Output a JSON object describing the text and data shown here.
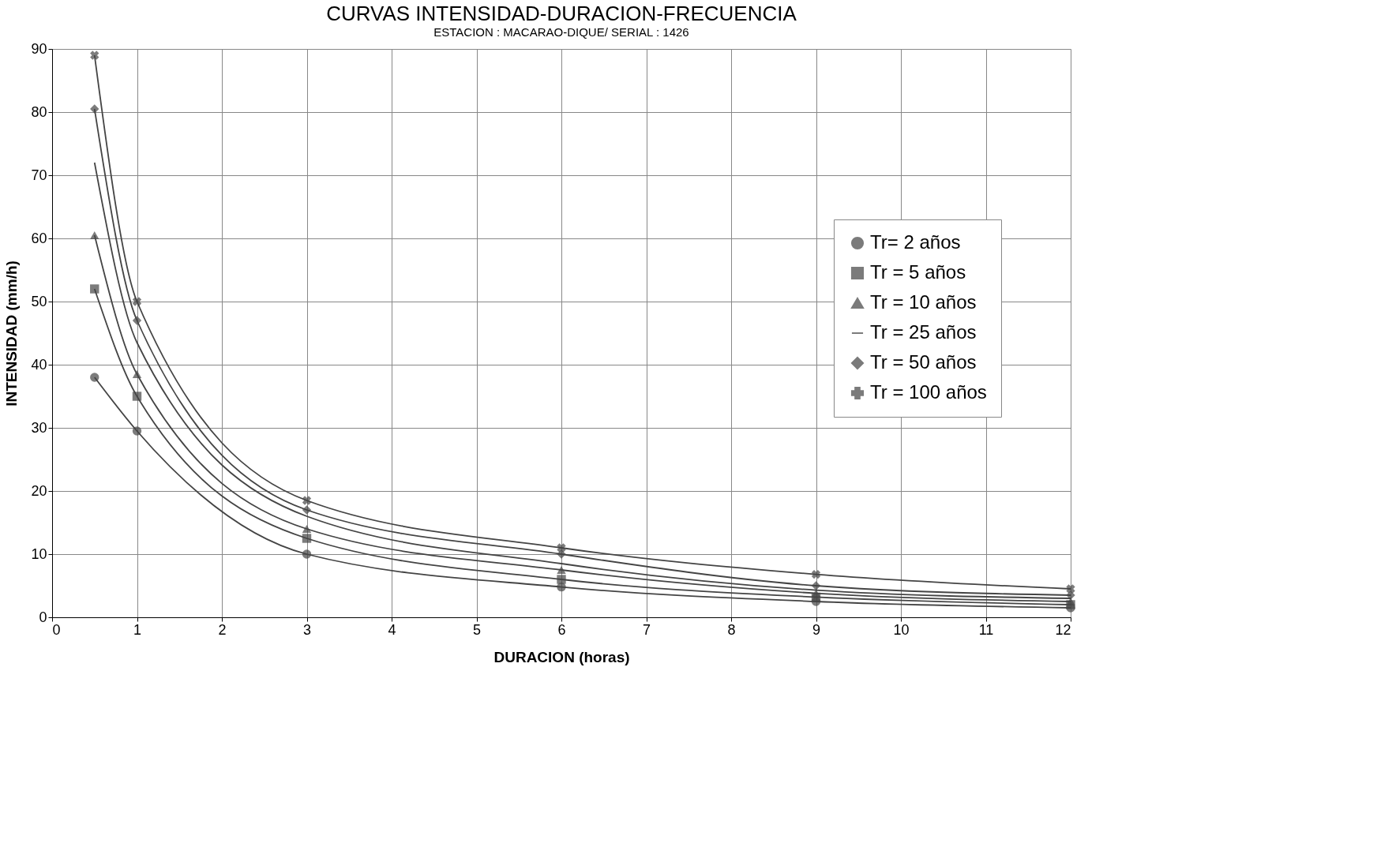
{
  "chart_data": {
    "type": "line",
    "title": "CURVAS INTENSIDAD-DURACION-FRECUENCIA",
    "subtitle": "ESTACION : MACARAO-DIQUE/ SERIAL : 1426",
    "xlabel": "DURACION (horas)",
    "ylabel": "INTENSIDAD (mm/h)",
    "x": [
      0.5,
      1,
      3,
      6,
      9,
      12
    ],
    "series": [
      {
        "name": "Tr= 2 años",
        "color": "#444444",
        "marker": "circle",
        "values": [
          38,
          29.5,
          10,
          4.8,
          2.5,
          1.5
        ]
      },
      {
        "name": "Tr = 5 años",
        "color": "#444444",
        "marker": "square",
        "values": [
          52,
          35,
          12.5,
          6,
          3.2,
          2
        ]
      },
      {
        "name": "Tr = 10 años",
        "color": "#444444",
        "marker": "triangle",
        "values": [
          60.5,
          38.5,
          14,
          7.5,
          3.8,
          2.5
        ]
      },
      {
        "name": "Tr = 25 años",
        "color": "#444444",
        "marker": "none",
        "values": [
          72,
          43.5,
          16,
          8.5,
          4.3,
          3
        ]
      },
      {
        "name": "Tr = 50 años",
        "color": "#444444",
        "marker": "diamond",
        "values": [
          80.5,
          47,
          17,
          10,
          5,
          3.5
        ]
      },
      {
        "name": "Tr = 100 años",
        "color": "#444444",
        "marker": "cross",
        "values": [
          89,
          50,
          18.5,
          11,
          6.8,
          4.5
        ]
      }
    ],
    "xlim": [
      0,
      12
    ],
    "xticks": [
      0,
      1,
      2,
      3,
      4,
      5,
      6,
      7,
      8,
      9,
      10,
      11,
      12
    ],
    "ylim": [
      0,
      90
    ],
    "yticks": [
      0,
      10,
      20,
      30,
      40,
      50,
      60,
      70,
      80,
      90
    ],
    "grid": true,
    "legend": "right",
    "line_style": "solid"
  }
}
